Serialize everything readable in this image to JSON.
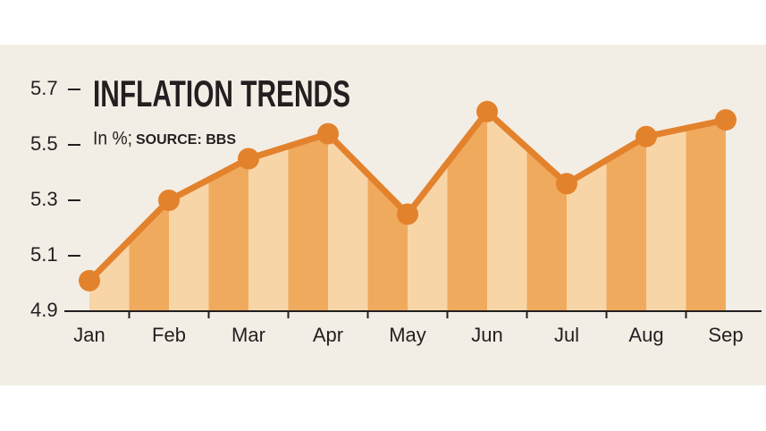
{
  "chart_data": {
    "type": "line",
    "title": "INFLATION TRENDS",
    "subtitle": "In %;",
    "source": "SOURCE: BBS",
    "categories": [
      "Jan",
      "Feb",
      "Mar",
      "Apr",
      "May",
      "Jun",
      "Jul",
      "Aug",
      "Sep"
    ],
    "values": [
      5.01,
      5.3,
      5.45,
      5.54,
      5.25,
      5.62,
      5.36,
      5.53,
      5.59
    ],
    "color": "#e3822d",
    "fill_colors": [
      "#f8d5a7",
      "#f0aa5d"
    ],
    "ylim": [
      4.9,
      5.7
    ],
    "yticks": [
      4.9,
      5.1,
      5.3,
      5.5,
      5.7
    ]
  }
}
